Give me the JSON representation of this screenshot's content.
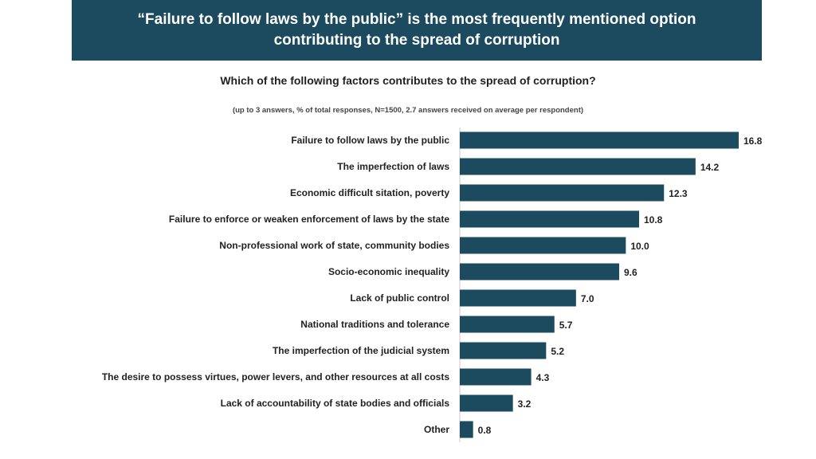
{
  "banner": {
    "title": "“Failure to follow laws by the public” is the most frequently mentioned option contributing to the spread of corruption"
  },
  "colors": {
    "banner_bg": "#1c4a5e",
    "bar": "#1c4a5e"
  },
  "chart_data": {
    "type": "bar",
    "orientation": "horizontal",
    "title": "Which of the following factors contributes to the spread of corruption?",
    "subtitle": "(up to 3 answers, % of total responses, N=1500, 2.7 answers received on average per respondent)",
    "xlabel": "",
    "ylabel": "",
    "xlim": [
      0,
      16.8
    ],
    "grid": false,
    "categories": [
      "Failure to follow laws by the public",
      "The imperfection of laws",
      "Economic difficult sitation, poverty",
      "Failure to enforce or weaken enforcement of laws by the state",
      "Non-professional work of state, community bodies",
      "Socio-economic inequality",
      "Lack of public control",
      "National traditions and tolerance",
      "The imperfection of the judicial system",
      "The desire to possess virtues, power levers, and other resources at all costs",
      "Lack of accountability of state bodies and officials",
      "Other"
    ],
    "values": [
      16.8,
      14.2,
      12.3,
      10.8,
      10.0,
      9.6,
      7.0,
      5.7,
      5.2,
      4.3,
      3.2,
      0.8
    ],
    "value_labels": [
      "16.8",
      "14.2",
      "12.3",
      "10.8",
      "10.0",
      "9.6",
      "7.0",
      "5.7",
      "5.2",
      "4.3",
      "3.2",
      "0.8"
    ]
  }
}
